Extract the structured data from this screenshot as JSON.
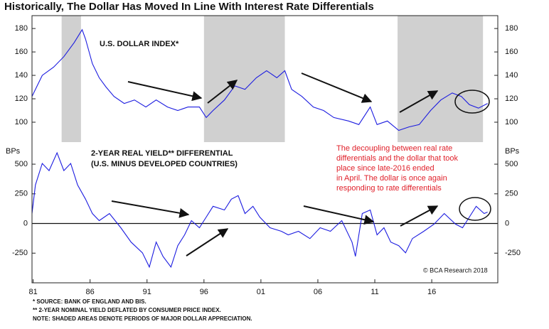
{
  "title": "Historically, The Dollar Has Moved In Line With Interest Rate Differentials",
  "credit": "© BCA Research 2018",
  "annotation": [
    "The decoupling between real rate",
    "differentials and the dollar that took",
    "place since late-2016 ended",
    "in April. The dollar is once again",
    "responding to rate differentials"
  ],
  "footnotes": [
    "*  SOURCE: BANK OF ENGLAND AND BIS.",
    "** 2-YEAR NOMINAL YIELD DEFLATED BY CONSUMER PRICE INDEX.",
    "NOTE: SHADED AREAS DENOTE PERIODS OF MAJOR DOLLAR APPRECIATION."
  ],
  "chart_data": [
    {
      "type": "line",
      "labels": [
        "U.S. DOLLAR INDEX*"
      ],
      "color": "#1c1ce0",
      "xlim": [
        1980.9,
        2021.8
      ],
      "ylim": [
        83,
        191
      ],
      "yticks": [
        100,
        120,
        140,
        160,
        180
      ],
      "shaded": [
        [
          1983.5,
          1985.2
        ],
        [
          1996.0,
          2003.1
        ],
        [
          2013.0,
          2020.5
        ]
      ],
      "x": [
        1980.9,
        1981.8,
        1982.8,
        1983.7,
        1984.6,
        1985.3,
        1985.6,
        1986.2,
        1986.8,
        1987.4,
        1988.1,
        1989.0,
        1989.9,
        1990.9,
        1991.8,
        1992.8,
        1993.7,
        1994.6,
        1995.6,
        1996.2,
        1996.8,
        1997.8,
        1998.7,
        1999.6,
        2000.6,
        2001.5,
        2002.4,
        2003.1,
        2003.7,
        2004.6,
        2005.6,
        2006.5,
        2007.4,
        2008.7,
        2009.6,
        2010.6,
        2011.2,
        2012.1,
        2013.1,
        2014.0,
        2014.9,
        2015.9,
        2016.8,
        2017.8,
        2018.6,
        2019.3,
        2020.1,
        2020.9
      ],
      "series": [
        {
          "values": [
            122,
            140,
            147,
            156,
            168,
            179,
            171,
            150,
            138,
            130,
            122,
            116,
            119,
            113,
            119,
            113,
            110,
            113,
            113,
            104,
            110,
            119,
            131,
            128,
            138,
            144,
            138,
            144,
            128,
            122,
            113,
            110,
            104,
            101,
            98,
            113,
            98,
            101,
            93,
            96,
            98,
            110,
            119,
            125,
            122,
            115,
            112,
            116
          ]
        }
      ]
    },
    {
      "type": "line",
      "labels": [
        "2-YEAR REAL YIELD** DIFFERENTIAL",
        "(U.S. MINUS DEVELOPED COUNTRIES)"
      ],
      "unit": "BPs",
      "color": "#1c1ce0",
      "xlim": [
        1980.9,
        2021.8
      ],
      "ylim": [
        -500,
        650
      ],
      "yticks": [
        -250,
        0,
        250,
        500
      ],
      "xticks": [
        {
          "value": 1981,
          "label": "81"
        },
        {
          "value": 1986,
          "label": "86"
        },
        {
          "value": 1991,
          "label": "91"
        },
        {
          "value": 1996,
          "label": "96"
        },
        {
          "value": 2001,
          "label": "01"
        },
        {
          "value": 2006,
          "label": "06"
        },
        {
          "value": 2011,
          "label": "11"
        },
        {
          "value": 2016,
          "label": "16"
        }
      ],
      "x": [
        1980.9,
        1981.2,
        1981.8,
        1982.4,
        1983.1,
        1983.7,
        1984.3,
        1984.9,
        1985.6,
        1986.2,
        1986.8,
        1987.7,
        1988.7,
        1989.6,
        1990.6,
        1991.2,
        1991.8,
        1992.4,
        1993.1,
        1993.7,
        1994.3,
        1994.9,
        1995.6,
        1996.2,
        1996.8,
        1997.8,
        1998.4,
        1999.0,
        1999.6,
        2000.3,
        2000.9,
        2001.8,
        2002.8,
        2003.4,
        2004.3,
        2005.3,
        2006.2,
        2007.1,
        2008.1,
        2009.0,
        2009.3,
        2009.9,
        2010.6,
        2011.2,
        2011.8,
        2012.4,
        2013.1,
        2013.7,
        2014.3,
        2015.3,
        2016.2,
        2017.1,
        2018.1,
        2018.7,
        2019.3,
        2019.9,
        2020.6,
        2020.9
      ],
      "series": [
        {
          "values": [
            84,
            325,
            506,
            446,
            596,
            446,
            506,
            325,
            205,
            84,
            24,
            84,
            -36,
            -157,
            -247,
            -367,
            -157,
            -277,
            -367,
            -187,
            -96,
            24,
            -36,
            54,
            145,
            114,
            205,
            235,
            84,
            145,
            54,
            -36,
            -66,
            -96,
            -66,
            -127,
            -36,
            -66,
            24,
            -157,
            -277,
            84,
            114,
            -96,
            -36,
            -157,
            -187,
            -247,
            -127,
            -66,
            -6,
            84,
            -6,
            -36,
            54,
            145,
            84,
            96
          ]
        }
      ]
    }
  ]
}
